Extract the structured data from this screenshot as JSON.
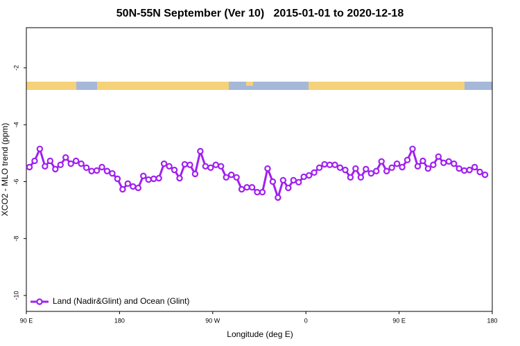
{
  "chart_data": {
    "type": "line",
    "title": "50N-55N September (Ver 10)   2015-01-01 to 2020-12-18",
    "x_label": "Longitude (deg E)",
    "y_label": "XCO2 - MLO trend (ppm)",
    "xlim": [
      90,
      540
    ],
    "xticks": [
      {
        "value": 90,
        "label": "90 E"
      },
      {
        "value": 180,
        "label": "180"
      },
      {
        "value": 270,
        "label": "90 W"
      },
      {
        "value": 360,
        "label": "0"
      },
      {
        "value": 450,
        "label": "90 E"
      },
      {
        "value": 540,
        "label": "180"
      }
    ],
    "ylim": [
      -10.56,
      -0.59
    ],
    "yticks": [
      -2,
      -4,
      -6,
      -8,
      -10
    ],
    "legend": "bottom-left",
    "series": [
      {
        "name": "Land (Nadir&Glint) and Ocean (Glint)",
        "color": "#a020f0",
        "x": [
          93,
          98,
          103,
          108,
          113,
          118,
          123,
          128,
          133,
          138,
          143,
          148,
          153,
          158,
          163,
          168,
          173,
          178,
          183,
          188,
          193,
          198,
          203,
          208,
          213,
          218,
          223,
          228,
          233,
          238,
          243,
          248,
          253,
          258,
          263,
          268,
          273,
          278,
          283,
          288,
          293,
          298,
          303,
          308,
          313,
          318,
          323,
          328,
          333,
          338,
          343,
          348,
          353,
          358,
          363,
          368,
          373,
          378,
          383,
          388,
          393,
          398,
          403,
          408,
          413,
          418,
          423,
          428,
          433,
          438,
          443,
          448,
          453,
          458,
          463,
          468,
          473,
          478,
          483,
          488,
          493,
          498,
          503,
          508,
          513,
          518,
          523,
          528,
          533
        ],
        "values": [
          -5.49,
          -5.27,
          -4.85,
          -5.46,
          -5.27,
          -5.56,
          -5.41,
          -5.15,
          -5.37,
          -5.27,
          -5.37,
          -5.51,
          -5.63,
          -5.61,
          -5.49,
          -5.63,
          -5.71,
          -5.9,
          -6.27,
          -6.07,
          -6.17,
          -6.22,
          -5.8,
          -5.93,
          -5.9,
          -5.88,
          -5.37,
          -5.46,
          -5.59,
          -5.88,
          -5.39,
          -5.41,
          -5.73,
          -4.93,
          -5.46,
          -5.51,
          -5.41,
          -5.46,
          -5.85,
          -5.76,
          -5.85,
          -6.27,
          -6.2,
          -6.2,
          -6.37,
          -6.37,
          -5.54,
          -6.0,
          -6.56,
          -5.95,
          -6.22,
          -5.95,
          -6.02,
          -5.83,
          -5.78,
          -5.68,
          -5.51,
          -5.39,
          -5.41,
          -5.41,
          -5.51,
          -5.59,
          -5.85,
          -5.54,
          -5.85,
          -5.56,
          -5.71,
          -5.63,
          -5.29,
          -5.63,
          -5.51,
          -5.37,
          -5.49,
          -5.24,
          -4.85,
          -5.46,
          -5.27,
          -5.54,
          -5.41,
          -5.12,
          -5.34,
          -5.29,
          -5.37,
          -5.54,
          -5.61,
          -5.59,
          -5.49,
          -5.66,
          -5.76
        ]
      }
    ]
  }
}
